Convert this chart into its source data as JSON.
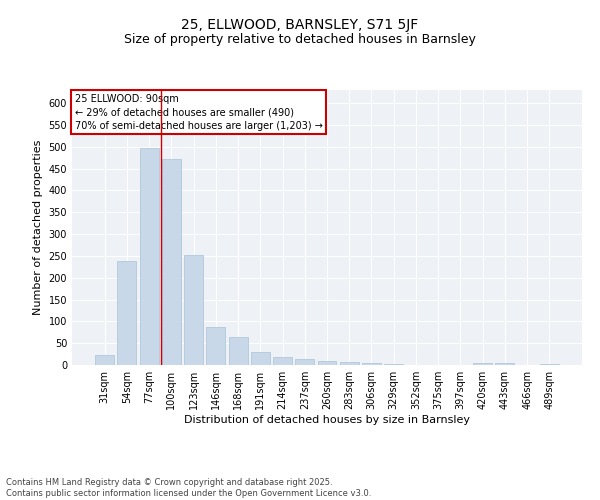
{
  "title1": "25, ELLWOOD, BARNSLEY, S71 5JF",
  "title2": "Size of property relative to detached houses in Barnsley",
  "xlabel": "Distribution of detached houses by size in Barnsley",
  "ylabel": "Number of detached properties",
  "categories": [
    "31sqm",
    "54sqm",
    "77sqm",
    "100sqm",
    "123sqm",
    "146sqm",
    "168sqm",
    "191sqm",
    "214sqm",
    "237sqm",
    "260sqm",
    "283sqm",
    "306sqm",
    "329sqm",
    "352sqm",
    "375sqm",
    "397sqm",
    "420sqm",
    "443sqm",
    "466sqm",
    "489sqm"
  ],
  "values": [
    22,
    238,
    497,
    472,
    252,
    88,
    65,
    30,
    18,
    13,
    10,
    8,
    5,
    2,
    1,
    1,
    1,
    5,
    4,
    1,
    3
  ],
  "bar_color": "#c8d8e8",
  "bar_edgecolor": "#a8c4d8",
  "vline_color": "#cc0000",
  "vline_pos": 2.55,
  "annotation_title": "25 ELLWOOD: 90sqm",
  "annotation_line1": "← 29% of detached houses are smaller (490)",
  "annotation_line2": "70% of semi-detached houses are larger (1,203) →",
  "annotation_box_color": "#ffffff",
  "annotation_box_edgecolor": "#cc0000",
  "ylim": [
    0,
    630
  ],
  "yticks": [
    0,
    50,
    100,
    150,
    200,
    250,
    300,
    350,
    400,
    450,
    500,
    550,
    600
  ],
  "background_color": "#eef2f7",
  "footer": "Contains HM Land Registry data © Crown copyright and database right 2025.\nContains public sector information licensed under the Open Government Licence v3.0.",
  "title_fontsize": 10,
  "subtitle_fontsize": 9,
  "xlabel_fontsize": 8,
  "ylabel_fontsize": 8,
  "tick_fontsize": 7,
  "annotation_fontsize": 7,
  "footer_fontsize": 6
}
